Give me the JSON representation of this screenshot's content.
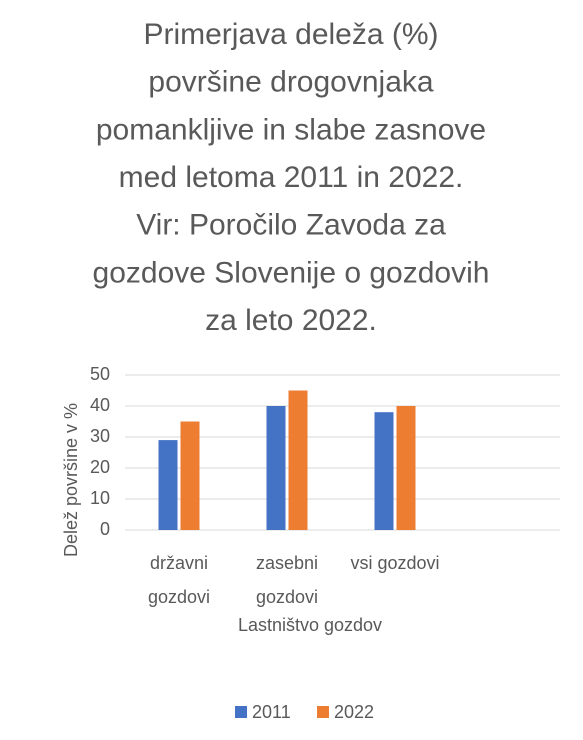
{
  "chart_data": {
    "type": "bar",
    "title": [
      "Primerjava deleža (%)",
      "površine drogovnjaka",
      "pomankljive in slabe zasnove",
      "med letoma 2011 in 2022.",
      "Vir: Poročilo Zavoda za",
      "gozdove Slovenije o gozdovih",
      "za leto 2022."
    ],
    "categories": [
      "državni gozdovi",
      "zasebni gozdovi",
      "vsi gozdovi"
    ],
    "series": [
      {
        "name": "2011",
        "color": "#4472c4",
        "values": [
          29,
          40,
          38
        ]
      },
      {
        "name": "2022",
        "color": "#ed7d31",
        "values": [
          35,
          45,
          40
        ]
      }
    ],
    "y_label": "Delež površine v %",
    "x_label": "Lastništvo gozdov",
    "ylim": [
      0,
      50
    ],
    "yticks": [
      0,
      10,
      20,
      30,
      40,
      50
    ],
    "grid": true,
    "legend": "bottom"
  }
}
